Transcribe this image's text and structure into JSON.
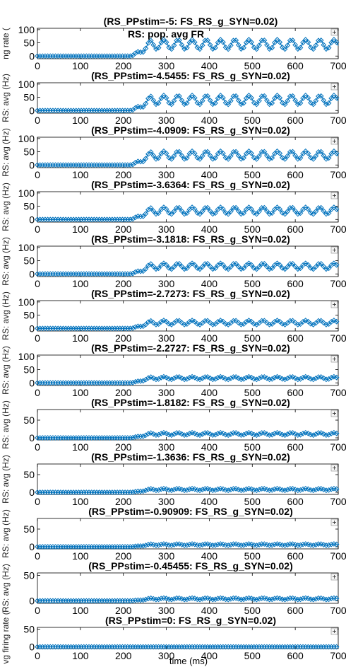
{
  "figure": {
    "supertitle": "RS: pop. avg FR",
    "xlabel": "time (ms)",
    "ylabel_visible": "vg firing rate (",
    "ylabel_fragments": [
      "ng rate (",
      "RS: avg (Hz)",
      "RS: avg (Hz)",
      "RS: avg (Hz)",
      "RS: avg (Hz)",
      "RS: avg (Hz)",
      "RS: avg (Hz)",
      "RS: avg (Hz)",
      "RS: avg (Hz)",
      "RS: avg (Hz)",
      "RS: avg (Hz)",
      "vg firing rate ("
    ],
    "colors": {
      "series": "#0072BD",
      "axes": "#000000",
      "background": "#ffffff"
    },
    "zoom_icon": "zoom-plus-icon"
  },
  "chart_data": [
    {
      "type": "line",
      "title": "(RS_PPstim=-5: FS_RS_g_SYN=0.02)",
      "xlim": [
        0,
        700
      ],
      "ylim": [
        -10,
        105
      ],
      "yticks": [
        0,
        50,
        100
      ],
      "xticks": [
        0,
        100,
        200,
        300,
        400,
        500,
        600,
        700
      ],
      "baseline": 0,
      "onset_ms": 220,
      "rise_end_ms": 265,
      "plateau": 44,
      "osc_amp": 18,
      "osc_period_ms": 33,
      "marker": "diamond"
    },
    {
      "type": "line",
      "title": "(RS_PPstim=-4.5455: FS_RS_g_SYN=0.02)",
      "xlim": [
        0,
        700
      ],
      "ylim": [
        -10,
        105
      ],
      "yticks": [
        0,
        50,
        100
      ],
      "xticks": [
        0,
        100,
        200,
        300,
        400,
        500,
        600,
        700
      ],
      "baseline": 0,
      "onset_ms": 220,
      "rise_end_ms": 265,
      "plateau": 40,
      "osc_amp": 17,
      "osc_period_ms": 33,
      "marker": "diamond"
    },
    {
      "type": "line",
      "title": "(RS_PPstim=-4.0909: FS_RS_g_SYN=0.02)",
      "xlim": [
        0,
        700
      ],
      "ylim": [
        -10,
        105
      ],
      "yticks": [
        0,
        50,
        100
      ],
      "xticks": [
        0,
        100,
        200,
        300,
        400,
        500,
        600,
        700
      ],
      "baseline": 0,
      "onset_ms": 220,
      "rise_end_ms": 265,
      "plateau": 37,
      "osc_amp": 15,
      "osc_period_ms": 33,
      "marker": "diamond"
    },
    {
      "type": "line",
      "title": "(RS_PPstim=-3.6364: FS_RS_g_SYN=0.02)",
      "xlim": [
        0,
        700
      ],
      "ylim": [
        -10,
        105
      ],
      "yticks": [
        0,
        50,
        100
      ],
      "xticks": [
        0,
        100,
        200,
        300,
        400,
        500,
        600,
        700
      ],
      "baseline": 0,
      "onset_ms": 220,
      "rise_end_ms": 265,
      "plateau": 33,
      "osc_amp": 13,
      "osc_period_ms": 33,
      "marker": "diamond"
    },
    {
      "type": "line",
      "title": "(RS_PPstim=-3.1818: FS_RS_g_SYN=0.02)",
      "xlim": [
        0,
        700
      ],
      "ylim": [
        -10,
        105
      ],
      "yticks": [
        0,
        50,
        100
      ],
      "xticks": [
        0,
        100,
        200,
        300,
        400,
        500,
        600,
        700
      ],
      "baseline": 0,
      "onset_ms": 220,
      "rise_end_ms": 265,
      "plateau": 29,
      "osc_amp": 11,
      "osc_period_ms": 33,
      "marker": "diamond"
    },
    {
      "type": "line",
      "title": "(RS_PPstim=-2.7273: FS_RS_g_SYN=0.02)",
      "xlim": [
        0,
        700
      ],
      "ylim": [
        -10,
        105
      ],
      "yticks": [
        0,
        50,
        100
      ],
      "xticks": [
        0,
        100,
        200,
        300,
        400,
        500,
        600,
        700
      ],
      "baseline": 0,
      "onset_ms": 220,
      "rise_end_ms": 265,
      "plateau": 22,
      "osc_amp": 8,
      "osc_period_ms": 33,
      "marker": "diamond"
    },
    {
      "type": "line",
      "title": "(RS_PPstim=-2.2727: FS_RS_g_SYN=0.02)",
      "xlim": [
        0,
        700
      ],
      "ylim": [
        -10,
        105
      ],
      "yticks": [
        0,
        50,
        100
      ],
      "xticks": [
        0,
        100,
        200,
        300,
        400,
        500,
        600,
        700
      ],
      "baseline": 0,
      "onset_ms": 220,
      "rise_end_ms": 265,
      "plateau": 18,
      "osc_amp": 5,
      "osc_period_ms": 33,
      "marker": "diamond"
    },
    {
      "type": "line",
      "title": "(RS_PPstim=-1.8182: FS_RS_g_SYN=0.02)",
      "xlim": [
        0,
        700
      ],
      "ylim": [
        -6,
        80
      ],
      "yticks": [
        0,
        50
      ],
      "xticks": [
        0,
        100,
        200,
        300,
        400,
        500,
        600,
        700
      ],
      "baseline": 0,
      "onset_ms": 220,
      "rise_end_ms": 265,
      "plateau": 11,
      "osc_amp": 3.5,
      "osc_period_ms": 33,
      "marker": "diamond"
    },
    {
      "type": "line",
      "title": "(RS_PPstim=-1.3636: FS_RS_g_SYN=0.02)",
      "xlim": [
        0,
        700
      ],
      "ylim": [
        -6,
        80
      ],
      "yticks": [
        0,
        50
      ],
      "xticks": [
        0,
        100,
        200,
        300,
        400,
        500,
        600,
        700
      ],
      "baseline": 0,
      "onset_ms": 220,
      "rise_end_ms": 265,
      "plateau": 8,
      "osc_amp": 2.5,
      "osc_period_ms": 33,
      "marker": "diamond"
    },
    {
      "type": "line",
      "title": "(RS_PPstim=-0.90909: FS_RS_g_SYN=0.02)",
      "xlim": [
        0,
        700
      ],
      "ylim": [
        -6,
        80
      ],
      "yticks": [
        0,
        50
      ],
      "xticks": [
        0,
        100,
        200,
        300,
        400,
        500,
        600,
        700
      ],
      "baseline": 0,
      "onset_ms": 220,
      "rise_end_ms": 265,
      "plateau": 6,
      "osc_amp": 2,
      "osc_period_ms": 33,
      "marker": "diamond"
    },
    {
      "type": "line",
      "title": "(RS_PPstim=-0.45455: FS_RS_g_SYN=0.02)",
      "xlim": [
        0,
        700
      ],
      "ylim": [
        -5,
        55
      ],
      "yticks": [
        0,
        50
      ],
      "xticks": [
        0,
        100,
        200,
        300,
        400,
        500,
        600,
        700
      ],
      "baseline": 0,
      "onset_ms": 220,
      "rise_end_ms": 265,
      "plateau": 4,
      "osc_amp": 1.5,
      "osc_period_ms": 33,
      "marker": "diamond"
    },
    {
      "type": "line",
      "title": "(RS_PPstim=0: FS_RS_g_SYN=0.02)",
      "xlim": [
        0,
        700
      ],
      "ylim": [
        -5,
        55
      ],
      "yticks": [
        0,
        50
      ],
      "xticks": [
        0,
        100,
        200,
        300,
        400,
        500,
        600,
        700
      ],
      "baseline": 0,
      "onset_ms": 220,
      "rise_end_ms": 265,
      "plateau": 0,
      "osc_amp": 0,
      "osc_period_ms": 33,
      "marker": "diamond"
    }
  ]
}
